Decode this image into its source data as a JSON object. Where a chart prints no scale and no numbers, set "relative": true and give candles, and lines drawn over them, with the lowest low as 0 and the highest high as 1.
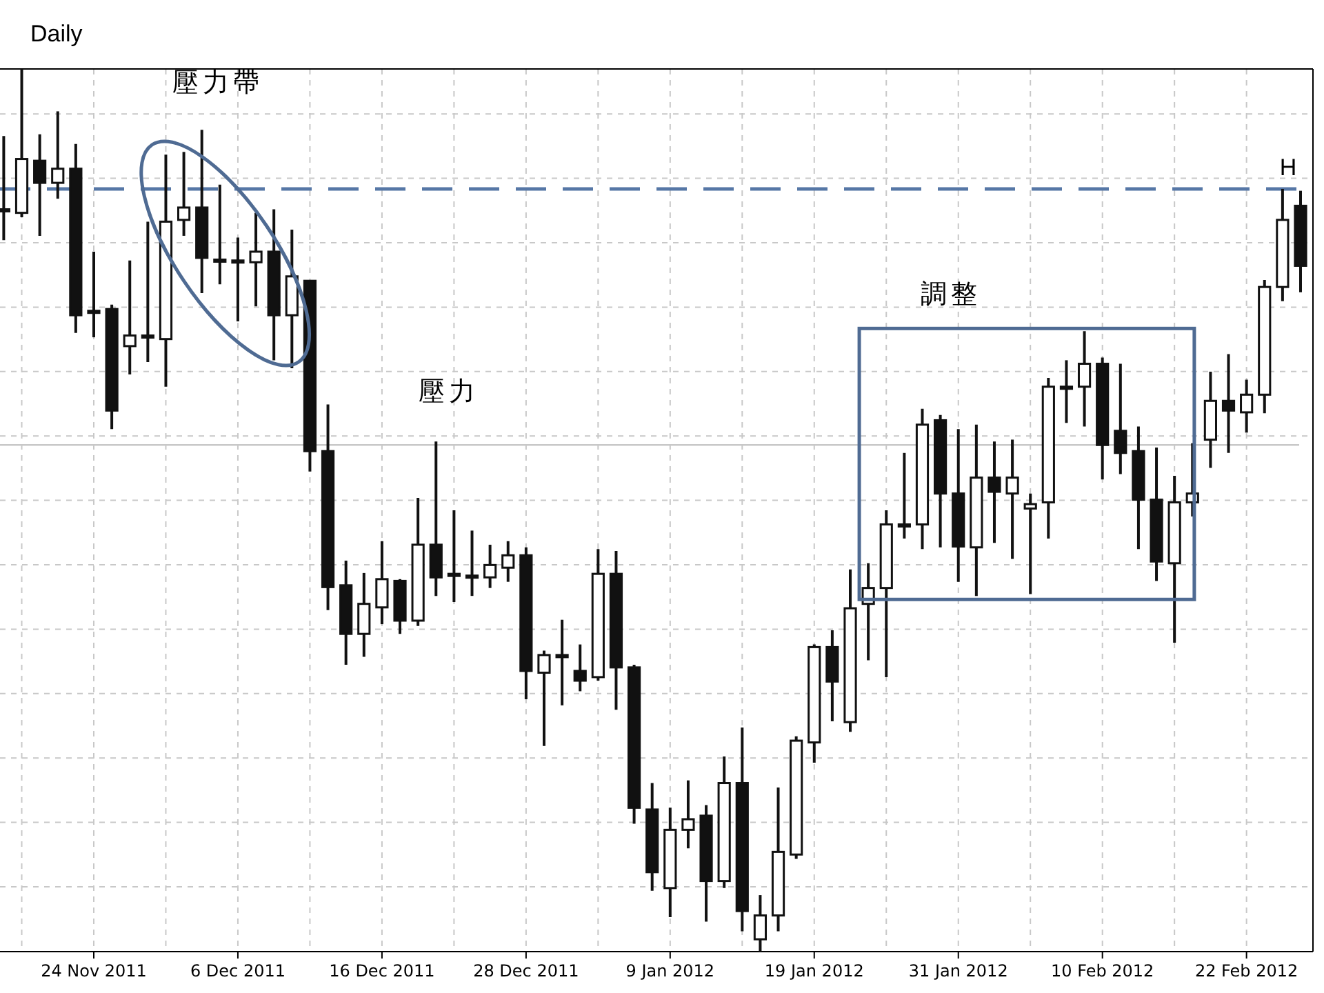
{
  "chart_data": {
    "type": "candlestick",
    "title": "Daily",
    "relative": true,
    "grid": true,
    "categories": [
      null,
      null,
      null,
      null,
      null,
      "24 Nov 2011",
      null,
      null,
      null,
      null,
      null,
      null,
      null,
      "6 Dec 2011",
      null,
      null,
      null,
      null,
      null,
      null,
      null,
      "16 Dec 2011",
      null,
      null,
      null,
      null,
      null,
      null,
      null,
      "28 Dec 2011",
      null,
      null,
      null,
      null,
      null,
      null,
      null,
      "9 Jan 2012",
      null,
      null,
      null,
      null,
      null,
      null,
      null,
      "19 Jan 2012",
      null,
      null,
      null,
      null,
      null,
      null,
      null,
      "31 Jan 2012",
      null,
      null,
      null,
      null,
      null,
      null,
      null,
      "10 Feb 2012",
      null,
      null,
      null,
      null,
      null,
      null,
      null,
      "22 Feb 2012",
      null,
      null,
      null
    ],
    "ohlc": [
      [
        0.841,
        0.924,
        0.806,
        0.841
      ],
      [
        0.837,
        1.0,
        0.832,
        0.898
      ],
      [
        0.896,
        0.926,
        0.811,
        0.871
      ],
      [
        0.871,
        0.952,
        0.853,
        0.887
      ],
      [
        0.887,
        0.915,
        0.701,
        0.721
      ],
      [
        0.726,
        0.793,
        0.696,
        0.724
      ],
      [
        0.728,
        0.733,
        0.592,
        0.613
      ],
      [
        0.686,
        0.783,
        0.654,
        0.698
      ],
      [
        0.698,
        0.827,
        0.668,
        0.698
      ],
      [
        0.694,
        0.903,
        0.64,
        0.827
      ],
      [
        0.829,
        0.906,
        0.811,
        0.843
      ],
      [
        0.843,
        0.931,
        0.746,
        0.786
      ],
      [
        0.784,
        0.869,
        0.756,
        0.784
      ],
      [
        0.783,
        0.809,
        0.714,
        0.783
      ],
      [
        0.781,
        0.837,
        0.731,
        0.793
      ],
      [
        0.793,
        0.841,
        0.67,
        0.721
      ],
      [
        0.721,
        0.818,
        0.661,
        0.765
      ],
      [
        0.76,
        0.761,
        0.544,
        0.567
      ],
      [
        0.567,
        0.62,
        0.387,
        0.413
      ],
      [
        0.415,
        0.443,
        0.325,
        0.36
      ],
      [
        0.36,
        0.429,
        0.334,
        0.394
      ],
      [
        0.39,
        0.465,
        0.371,
        0.422
      ],
      [
        0.42,
        0.422,
        0.36,
        0.375
      ],
      [
        0.375,
        0.514,
        0.369,
        0.461
      ],
      [
        0.461,
        0.578,
        0.403,
        0.424
      ],
      [
        0.428,
        0.5,
        0.396,
        0.428
      ],
      [
        0.426,
        0.477,
        0.403,
        0.426
      ],
      [
        0.424,
        0.461,
        0.412,
        0.438
      ],
      [
        0.435,
        0.465,
        0.419,
        0.449
      ],
      [
        0.449,
        0.458,
        0.286,
        0.318
      ],
      [
        0.316,
        0.341,
        0.233,
        0.336
      ],
      [
        0.336,
        0.376,
        0.279,
        0.336
      ],
      [
        0.318,
        0.348,
        0.295,
        0.307
      ],
      [
        0.311,
        0.456,
        0.307,
        0.428
      ],
      [
        0.428,
        0.454,
        0.274,
        0.322
      ],
      [
        0.322,
        0.325,
        0.145,
        0.163
      ],
      [
        0.161,
        0.191,
        0.069,
        0.09
      ],
      [
        0.072,
        0.163,
        0.039,
        0.138
      ],
      [
        0.138,
        0.194,
        0.117,
        0.15
      ],
      [
        0.154,
        0.166,
        0.034,
        0.08
      ],
      [
        0.08,
        0.221,
        0.072,
        0.191
      ],
      [
        0.191,
        0.254,
        0.023,
        0.046
      ],
      [
        0.014,
        0.064,
        0.0,
        0.041
      ],
      [
        0.041,
        0.186,
        0.023,
        0.113
      ],
      [
        0.11,
        0.244,
        0.105,
        0.239
      ],
      [
        0.237,
        0.348,
        0.214,
        0.345
      ],
      [
        0.345,
        0.364,
        0.261,
        0.306
      ],
      [
        0.26,
        0.433,
        0.249,
        0.389
      ],
      [
        0.394,
        0.44,
        0.33,
        0.412
      ],
      [
        0.412,
        0.5,
        0.311,
        0.484
      ],
      [
        0.484,
        0.565,
        0.468,
        0.484
      ],
      [
        0.484,
        0.615,
        0.456,
        0.597
      ],
      [
        0.602,
        0.608,
        0.458,
        0.519
      ],
      [
        0.519,
        0.592,
        0.419,
        0.459
      ],
      [
        0.458,
        0.597,
        0.403,
        0.537
      ],
      [
        0.537,
        0.578,
        0.463,
        0.521
      ],
      [
        0.519,
        0.58,
        0.445,
        0.537
      ],
      [
        0.502,
        0.519,
        0.405,
        0.507
      ],
      [
        0.509,
        0.65,
        0.468,
        0.64
      ],
      [
        0.64,
        0.67,
        0.599,
        0.64
      ],
      [
        0.64,
        0.703,
        0.595,
        0.666
      ],
      [
        0.666,
        0.673,
        0.535,
        0.574
      ],
      [
        0.59,
        0.666,
        0.541,
        0.565
      ],
      [
        0.567,
        0.595,
        0.456,
        0.512
      ],
      [
        0.512,
        0.571,
        0.42,
        0.442
      ],
      [
        0.44,
        0.539,
        0.35,
        0.509
      ],
      [
        0.509,
        0.576,
        0.493,
        0.519
      ],
      [
        0.58,
        0.657,
        0.548,
        0.624
      ],
      [
        0.624,
        0.677,
        0.565,
        0.613
      ],
      [
        0.611,
        0.648,
        0.588,
        0.631
      ],
      [
        0.631,
        0.761,
        0.61,
        0.753
      ],
      [
        0.753,
        0.864,
        0.737,
        0.829
      ],
      [
        0.845,
        0.862,
        0.747,
        0.777
      ]
    ],
    "ref_lines": [
      {
        "axis": "y",
        "value": 0.864,
        "label": "H",
        "color": "#5677a6",
        "line_style": "dashed"
      },
      {
        "axis": "y",
        "value": 0.574,
        "color": "#c8c8c8",
        "line_style": "solid"
      }
    ],
    "annotations": [
      "壓力帶",
      "壓力",
      "調整"
    ]
  }
}
